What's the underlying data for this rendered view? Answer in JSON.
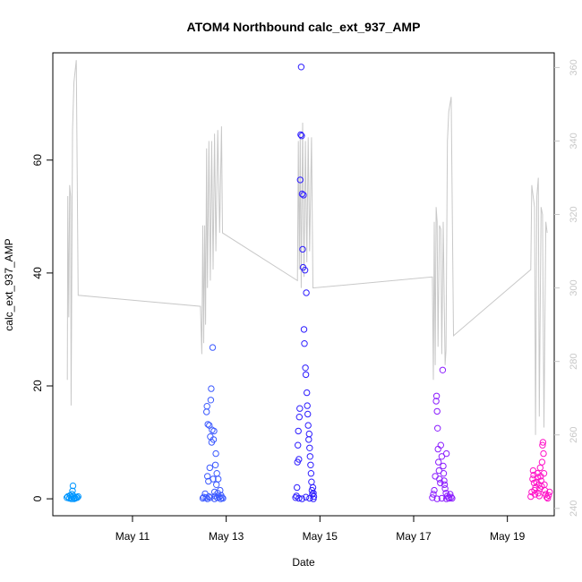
{
  "chart_data": {
    "type": "scatter",
    "title": "ATOM4 Northbound calc_ext_937_AMP",
    "xlabel": "Date",
    "ylabel": "calc_ext_937_AMP",
    "x_tick_labels": [
      "May 11",
      "May 13",
      "May 15",
      "May 17",
      "May 19"
    ],
    "x_tick_days": [
      11,
      13,
      15,
      17,
      19
    ],
    "xlim_days": [
      9.3,
      20.0
    ],
    "ylim": [
      -3,
      79
    ],
    "y_ticks": [
      0,
      20,
      40,
      60
    ],
    "y2_ticks": [
      240,
      260,
      280,
      300,
      320,
      340,
      360
    ],
    "y2lim": [
      238,
      364
    ],
    "grid": false,
    "legend": "none",
    "series": [
      {
        "kind": "points",
        "color": "#0096ff",
        "points": [
          [
            9.6,
            0.2
          ],
          [
            9.62,
            0.4
          ],
          [
            9.65,
            0.1
          ],
          [
            9.67,
            0.6
          ],
          [
            9.69,
            0.3
          ],
          [
            9.71,
            0.8
          ],
          [
            9.72,
            1.4
          ],
          [
            9.73,
            2.3
          ],
          [
            9.74,
            0.5
          ],
          [
            9.76,
            0.2
          ],
          [
            9.78,
            0.1
          ],
          [
            9.8,
            0.3
          ],
          [
            9.82,
            0.2
          ],
          [
            9.84,
            0.4
          ],
          [
            9.7,
            0.0
          ],
          [
            9.75,
            0.0
          ]
        ]
      },
      {
        "kind": "points",
        "color": "#3c5aff",
        "points": [
          [
            12.5,
            0.1
          ],
          [
            12.52,
            0.3
          ],
          [
            12.55,
            0.9
          ],
          [
            12.57,
            0.2
          ],
          [
            12.58,
            15.4
          ],
          [
            12.59,
            16.4
          ],
          [
            12.6,
            4.0
          ],
          [
            12.61,
            13.2
          ],
          [
            12.62,
            3.1
          ],
          [
            12.63,
            0.4
          ],
          [
            12.64,
            13.0
          ],
          [
            12.65,
            5.5
          ],
          [
            12.66,
            11.0
          ],
          [
            12.67,
            17.5
          ],
          [
            12.68,
            19.5
          ],
          [
            12.69,
            10.0
          ],
          [
            12.7,
            12.2
          ],
          [
            12.71,
            26.8
          ],
          [
            12.72,
            3.5
          ],
          [
            12.73,
            10.5
          ],
          [
            12.74,
            12.0
          ],
          [
            12.75,
            1.2
          ],
          [
            12.76,
            0.5
          ],
          [
            12.77,
            6.0
          ],
          [
            12.78,
            8.0
          ],
          [
            12.79,
            2.5
          ],
          [
            12.8,
            4.5
          ],
          [
            12.81,
            0.2
          ],
          [
            12.82,
            1.0
          ],
          [
            12.83,
            3.5
          ],
          [
            12.85,
            0.3
          ],
          [
            12.87,
            1.5
          ],
          [
            12.89,
            0.6
          ],
          [
            12.91,
            0.2
          ],
          [
            12.93,
            0.1
          ],
          [
            12.6,
            0.0
          ],
          [
            12.66,
            0.2
          ],
          [
            12.75,
            0.0
          ],
          [
            12.88,
            0.0
          ]
        ]
      },
      {
        "kind": "points",
        "color": "#2e1eff",
        "points": [
          [
            14.48,
            0.2
          ],
          [
            14.5,
            0.5
          ],
          [
            14.51,
            2.0
          ],
          [
            14.52,
            6.5
          ],
          [
            14.53,
            9.5
          ],
          [
            14.54,
            12.0
          ],
          [
            14.55,
            7.0
          ],
          [
            14.56,
            14.5
          ],
          [
            14.57,
            16.0
          ],
          [
            14.58,
            56.5
          ],
          [
            14.59,
            64.5
          ],
          [
            14.6,
            76.5
          ],
          [
            14.61,
            64.3
          ],
          [
            14.62,
            54.0
          ],
          [
            14.63,
            44.2
          ],
          [
            14.64,
            41.0
          ],
          [
            14.65,
            53.8
          ],
          [
            14.66,
            30.0
          ],
          [
            14.67,
            27.5
          ],
          [
            14.68,
            40.5
          ],
          [
            14.69,
            23.2
          ],
          [
            14.7,
            22.0
          ],
          [
            14.71,
            36.5
          ],
          [
            14.72,
            18.8
          ],
          [
            14.73,
            16.5
          ],
          [
            14.74,
            15.0
          ],
          [
            14.75,
            13.0
          ],
          [
            14.76,
            10.5
          ],
          [
            14.77,
            11.5
          ],
          [
            14.78,
            9.0
          ],
          [
            14.79,
            7.5
          ],
          [
            14.8,
            6.0
          ],
          [
            14.81,
            4.5
          ],
          [
            14.82,
            3.0
          ],
          [
            14.83,
            1.5
          ],
          [
            14.84,
            0.8
          ],
          [
            14.85,
            2.0
          ],
          [
            14.86,
            1.0
          ],
          [
            14.87,
            0.4
          ],
          [
            14.55,
            0.1
          ],
          [
            14.62,
            0.0
          ],
          [
            14.7,
            0.3
          ],
          [
            14.78,
            0.1
          ],
          [
            14.86,
            0.0
          ]
        ]
      },
      {
        "kind": "points",
        "color": "#8c1eff",
        "points": [
          [
            17.4,
            0.2
          ],
          [
            17.42,
            0.8
          ],
          [
            17.44,
            1.5
          ],
          [
            17.46,
            4.0
          ],
          [
            17.48,
            17.3
          ],
          [
            17.49,
            18.2
          ],
          [
            17.5,
            15.5
          ],
          [
            17.51,
            12.5
          ],
          [
            17.52,
            8.8
          ],
          [
            17.53,
            6.5
          ],
          [
            17.54,
            5.0
          ],
          [
            17.55,
            3.5
          ],
          [
            17.57,
            2.8
          ],
          [
            17.58,
            9.5
          ],
          [
            17.6,
            7.5
          ],
          [
            17.62,
            22.8
          ],
          [
            17.63,
            5.8
          ],
          [
            17.64,
            4.5
          ],
          [
            17.65,
            3.2
          ],
          [
            17.66,
            2.5
          ],
          [
            17.67,
            1.8
          ],
          [
            17.69,
            1.0
          ],
          [
            17.7,
            8.0
          ],
          [
            17.72,
            0.5
          ],
          [
            17.74,
            0.2
          ],
          [
            17.76,
            0.1
          ],
          [
            17.78,
            0.8
          ],
          [
            17.8,
            0.3
          ],
          [
            17.82,
            0.1
          ],
          [
            17.5,
            0.0
          ],
          [
            17.6,
            0.1
          ],
          [
            17.7,
            0.0
          ]
        ]
      },
      {
        "kind": "points",
        "color": "#ff14c8",
        "points": [
          [
            19.5,
            0.4
          ],
          [
            19.52,
            1.2
          ],
          [
            19.54,
            3.5
          ],
          [
            19.55,
            5.0
          ],
          [
            19.56,
            4.2
          ],
          [
            19.57,
            2.8
          ],
          [
            19.58,
            1.5
          ],
          [
            19.59,
            0.8
          ],
          [
            19.6,
            2.0
          ],
          [
            19.62,
            3.0
          ],
          [
            19.64,
            4.5
          ],
          [
            19.65,
            3.8
          ],
          [
            19.66,
            1.0
          ],
          [
            19.67,
            2.5
          ],
          [
            19.68,
            0.5
          ],
          [
            19.69,
            1.8
          ],
          [
            19.7,
            5.5
          ],
          [
            19.71,
            4.0
          ],
          [
            19.72,
            3.2
          ],
          [
            19.73,
            2.2
          ],
          [
            19.74,
            6.5
          ],
          [
            19.75,
            9.5
          ],
          [
            19.76,
            10.0
          ],
          [
            19.77,
            8.0
          ],
          [
            19.78,
            4.5
          ],
          [
            19.79,
            2.5
          ],
          [
            19.8,
            1.5
          ],
          [
            19.82,
            0.8
          ],
          [
            19.84,
            0.3
          ],
          [
            19.86,
            0.1
          ],
          [
            19.88,
            0.6
          ],
          [
            19.9,
            1.2
          ]
        ]
      },
      {
        "kind": "line",
        "axis": "right",
        "color": "#c8c8c8",
        "points": [
          [
            9.61,
            275
          ],
          [
            9.62,
            325
          ],
          [
            9.64,
            292
          ],
          [
            9.66,
            328
          ],
          [
            9.68,
            325
          ],
          [
            9.69,
            268
          ],
          [
            9.7,
            290
          ],
          [
            9.72,
            343
          ],
          [
            9.75,
            356
          ],
          [
            9.8,
            362
          ],
          [
            9.84,
            298
          ],
          [
            12.45,
            295
          ],
          [
            12.48,
            282
          ],
          [
            12.5,
            317
          ],
          [
            12.52,
            285
          ],
          [
            12.54,
            317
          ],
          [
            12.56,
            290
          ],
          [
            12.58,
            338
          ],
          [
            12.6,
            300
          ],
          [
            12.63,
            340
          ],
          [
            12.66,
            302
          ],
          [
            12.69,
            340
          ],
          [
            12.72,
            305
          ],
          [
            12.75,
            342
          ],
          [
            12.78,
            310
          ],
          [
            12.82,
            343
          ],
          [
            12.86,
            315
          ],
          [
            12.9,
            344
          ],
          [
            12.92,
            315
          ],
          [
            14.52,
            302
          ],
          [
            14.54,
            340
          ],
          [
            14.56,
            305
          ],
          [
            14.58,
            342
          ],
          [
            14.6,
            300
          ],
          [
            14.63,
            345
          ],
          [
            14.66,
            303
          ],
          [
            14.69,
            340
          ],
          [
            14.72,
            307
          ],
          [
            14.75,
            341
          ],
          [
            14.78,
            310
          ],
          [
            14.82,
            341
          ],
          [
            14.85,
            300
          ],
          [
            17.4,
            303
          ],
          [
            17.42,
            275
          ],
          [
            17.44,
            318
          ],
          [
            17.46,
            279
          ],
          [
            17.48,
            322
          ],
          [
            17.5,
            318
          ],
          [
            17.52,
            284
          ],
          [
            17.55,
            317
          ],
          [
            17.58,
            316
          ],
          [
            17.6,
            282
          ],
          [
            17.63,
            318
          ],
          [
            17.67,
            279
          ],
          [
            17.69,
            283
          ],
          [
            17.72,
            340
          ],
          [
            17.75,
            348
          ],
          [
            17.8,
            352
          ],
          [
            17.85,
            287
          ],
          [
            19.5,
            305
          ],
          [
            19.52,
            328
          ],
          [
            19.55,
            325
          ],
          [
            19.58,
            322
          ],
          [
            19.6,
            260
          ],
          [
            19.63,
            325
          ],
          [
            19.66,
            330
          ],
          [
            19.68,
            265
          ],
          [
            19.72,
            322
          ],
          [
            19.75,
            320
          ],
          [
            19.78,
            262
          ],
          [
            19.82,
            318
          ],
          [
            19.85,
            315
          ]
        ]
      }
    ]
  }
}
